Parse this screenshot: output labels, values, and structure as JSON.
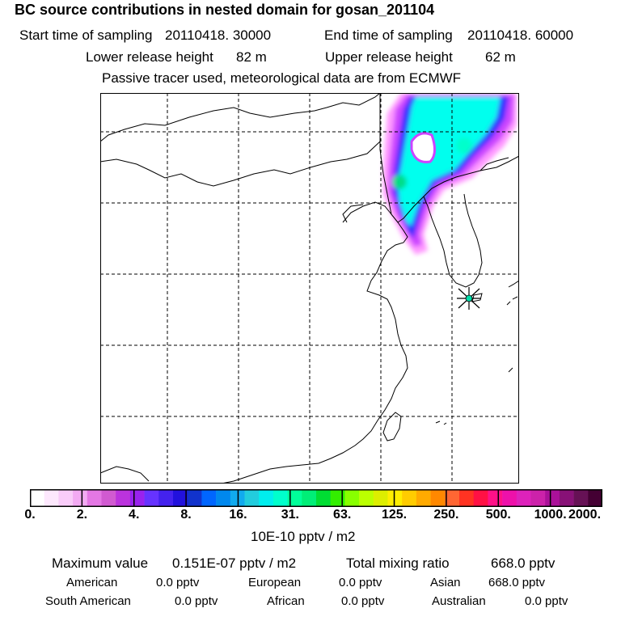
{
  "header": {
    "title": "BC  source contributions in nested domain for gosan_201104",
    "start_label": "Start time of sampling",
    "start_value": "20110418. 30000",
    "end_label": "End time of sampling",
    "end_value": "20110418. 60000",
    "lower_label": "Lower release height",
    "lower_value": "82 m",
    "upper_label": "Upper release height",
    "upper_value": "62 m",
    "note": "Passive tracer used, meteorological data are from ECMWF"
  },
  "map": {
    "grid": true,
    "receptor_marker": "star-marker",
    "plume_colors": [
      "#ff99ff",
      "#cc44ff",
      "#3333ff",
      "#00ffee",
      "#00dd88"
    ]
  },
  "colorbar": {
    "ticks": [
      "0.",
      "2.",
      "4.",
      "8.",
      "16.",
      "31.",
      "63.",
      "125.",
      "250.",
      "500.",
      "1000.",
      "2000."
    ],
    "colors": [
      "#ffffff",
      "#fde8fd",
      "#f9ccf9",
      "#f3aaf3",
      "#e477e4",
      "#d15ad1",
      "#bb33dd",
      "#9922ee",
      "#6633ff",
      "#4422ee",
      "#2211dd",
      "#1133cc",
      "#0066ff",
      "#0088ee",
      "#11aaee",
      "#22ccdd",
      "#00eeee",
      "#00ffcc",
      "#00ff99",
      "#00ee77",
      "#00dd33",
      "#33ee00",
      "#88ff00",
      "#bbff00",
      "#ddee00",
      "#ffee00",
      "#ffcc00",
      "#ffaa00",
      "#ff8800",
      "#ff6633",
      "#ff3322",
      "#ff1144",
      "#ff1188",
      "#ee11aa",
      "#dd22bb",
      "#cc22aa",
      "#aa1199",
      "#881177",
      "#661155",
      "#440033"
    ],
    "unit": "10E-10 pptv / m2"
  },
  "summary": {
    "max_label": "Maximum value",
    "max_value": "0.151E-07 pptv / m2",
    "total_label": "Total mixing ratio",
    "total_value": "668.0 pptv",
    "regions": [
      {
        "name": "American",
        "value": "0.0 pptv"
      },
      {
        "name": "European",
        "value": "0.0 pptv"
      },
      {
        "name": "Asian",
        "value": "668.0 pptv"
      },
      {
        "name": "South American",
        "value": "0.0 pptv"
      },
      {
        "name": "African",
        "value": "0.0 pptv"
      },
      {
        "name": "Australian",
        "value": "0.0 pptv"
      }
    ]
  }
}
